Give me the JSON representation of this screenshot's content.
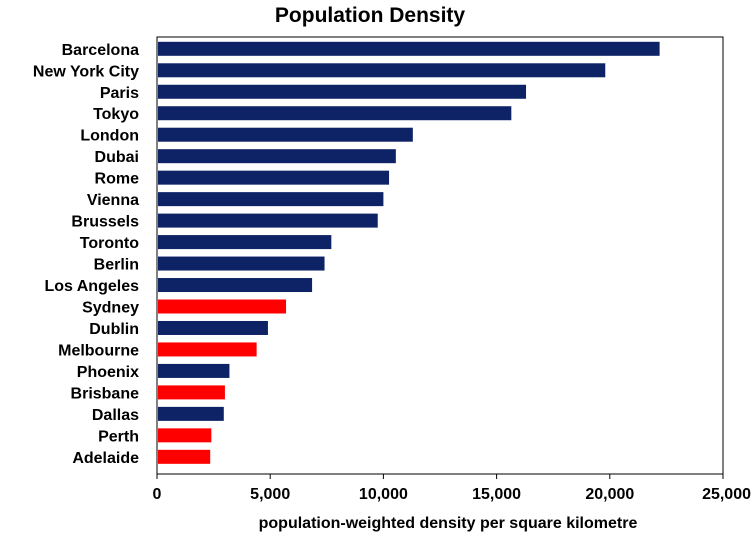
{
  "chart_data": {
    "type": "bar",
    "orientation": "horizontal",
    "title": "Population Density",
    "xlabel": "population-weighted density per square kilometre",
    "ylabel": "",
    "xlim": [
      0,
      25000
    ],
    "x_ticks": [
      0,
      5000,
      10000,
      15000,
      20000,
      25000
    ],
    "x_tick_labels": [
      "0",
      "5,000",
      "10,000",
      "15,000",
      "20,000",
      "25,000"
    ],
    "grid": false,
    "legend": "none",
    "categories": [
      "Barcelona",
      "New York City",
      "Paris",
      "Tokyo",
      "London",
      "Dubai",
      "Rome",
      "Vienna",
      "Brussels",
      "Toronto",
      "Berlin",
      "Los Angeles",
      "Sydney",
      "Dublin",
      "Melbourne",
      "Phoenix",
      "Brisbane",
      "Dallas",
      "Perth",
      "Adelaide"
    ],
    "values": [
      22200,
      19800,
      16300,
      15650,
      11300,
      10550,
      10250,
      10000,
      9750,
      7700,
      7400,
      6850,
      5700,
      4900,
      4400,
      3200,
      3000,
      2950,
      2400,
      2350
    ],
    "colors": {
      "default": "#0d2366",
      "highlight": "#ff0000",
      "highlighted_categories": [
        "Sydney",
        "Melbourne",
        "Brisbane",
        "Perth",
        "Adelaide"
      ]
    }
  }
}
